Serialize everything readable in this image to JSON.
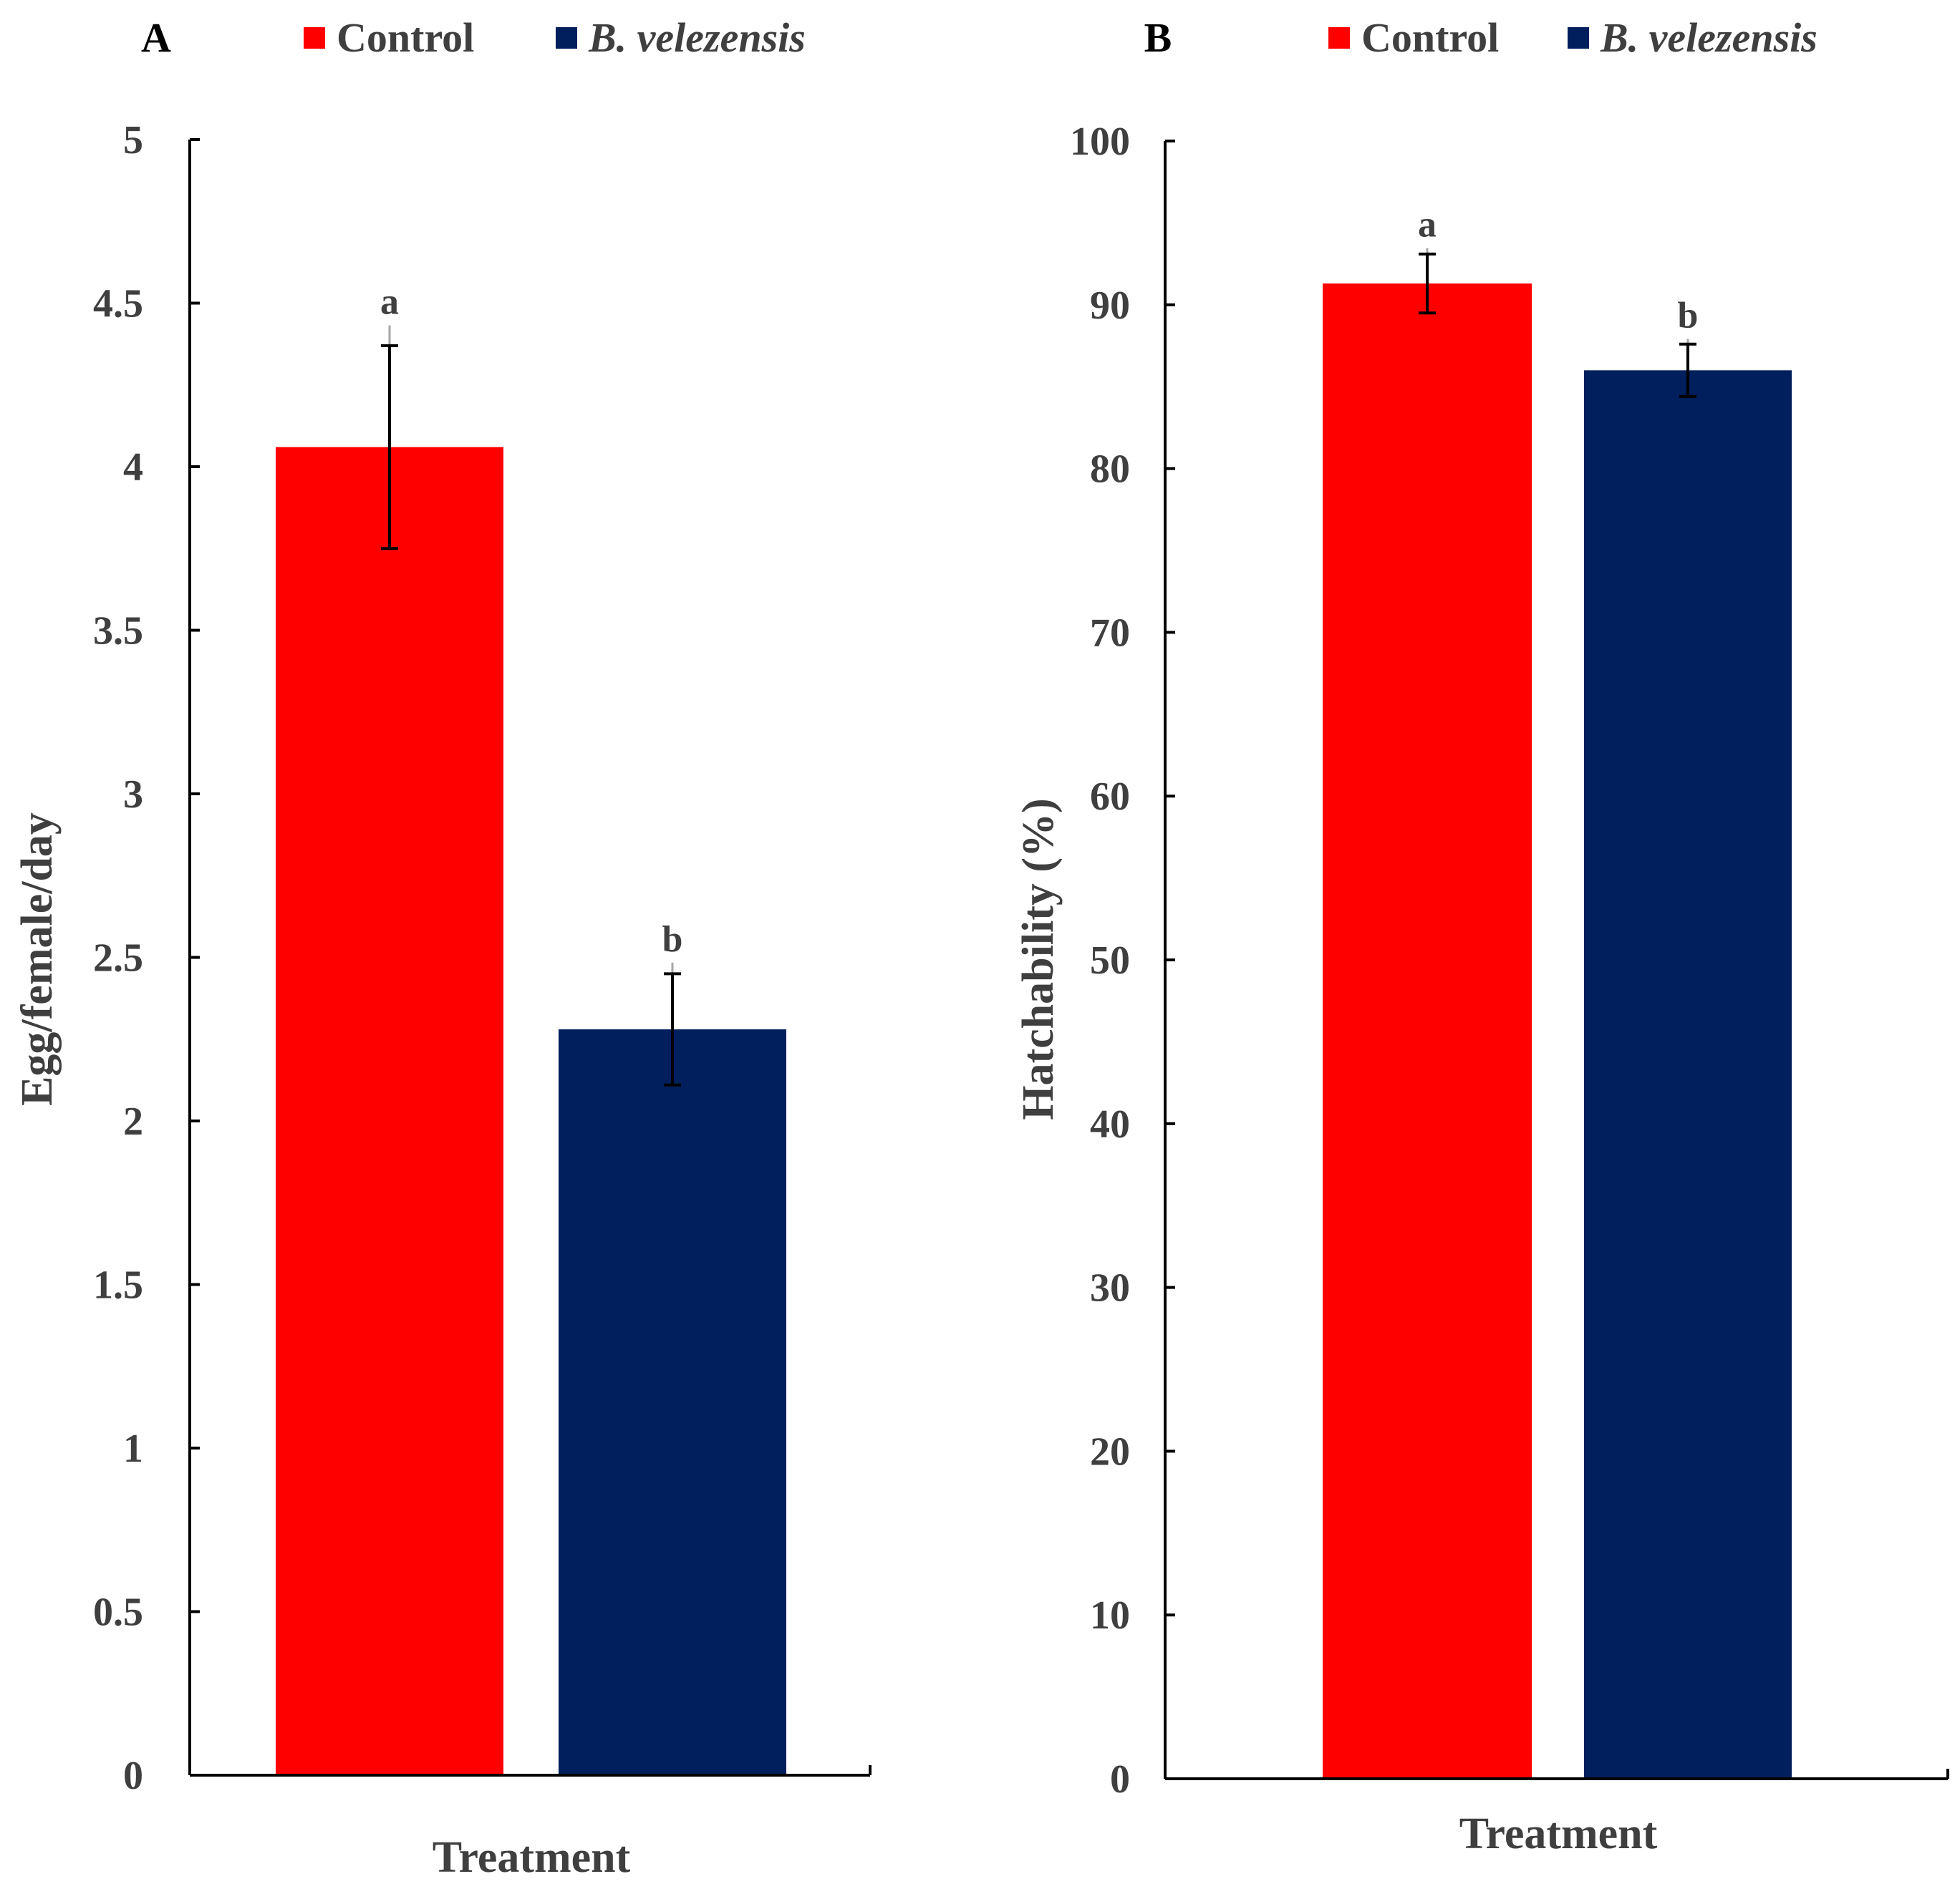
{
  "colors": {
    "control": "#ff0000",
    "b_velezensis": "#001f5c"
  },
  "chart_data": [
    {
      "type": "bar",
      "panel": "A",
      "title": "",
      "legend": [
        "Control",
        "B. velezensis"
      ],
      "legend_position": "top",
      "categories": [
        "Control",
        "B. velezensis"
      ],
      "values": [
        4.06,
        2.28
      ],
      "errors": [
        0.31,
        0.17
      ],
      "significance": [
        "a",
        "b"
      ],
      "xlabel": "Treatment",
      "ylabel": "Egg/female/day",
      "ylim": [
        0,
        5
      ],
      "yticks": [
        "0",
        "0.5",
        "1",
        "1.5",
        "2",
        "2.5",
        "3",
        "3.5",
        "4",
        "4.5",
        "5"
      ],
      "grid": false
    },
    {
      "type": "bar",
      "panel": "B",
      "title": "",
      "legend": [
        "Control",
        "B. velezensis"
      ],
      "legend_position": "top",
      "categories": [
        "Control",
        "B. velezensis"
      ],
      "values": [
        91.3,
        86.0
      ],
      "errors": [
        1.8,
        1.6
      ],
      "significance": [
        "a",
        "b"
      ],
      "xlabel": "Treatment",
      "ylabel": "Hatchability (%)",
      "ylim": [
        0,
        100
      ],
      "yticks": [
        "0",
        "10",
        "20",
        "30",
        "40",
        "50",
        "60",
        "70",
        "80",
        "90",
        "100"
      ],
      "grid": false
    }
  ]
}
